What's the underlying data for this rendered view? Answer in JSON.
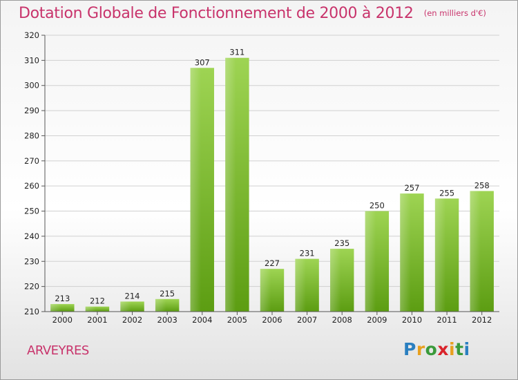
{
  "title": "Dotation Globale de Fonctionnement de 2000 à 2012",
  "unit_label": "(en milliers d'€)",
  "commune": "ARVEYRES",
  "logo": {
    "text": "Proxiti",
    "colors": [
      "#2a7fc0",
      "#e8a01f",
      "#3a9a3a",
      "#d9242c",
      "#e8a01f",
      "#3a9a3a",
      "#2a7fc0"
    ]
  },
  "colors": {
    "title": "#c8336b",
    "bar_light": "#9ed453",
    "bar_dark": "#5c9d12",
    "grid": "#d0d0d0"
  },
  "chart_data": {
    "type": "bar",
    "title": "Dotation Globale de Fonctionnement de 2000 à 2012",
    "subtitle": "(en milliers d'€)",
    "xlabel": "",
    "ylabel": "",
    "categories": [
      "2000",
      "2001",
      "2002",
      "2003",
      "2004",
      "2005",
      "2006",
      "2007",
      "2008",
      "2009",
      "2010",
      "2011",
      "2012"
    ],
    "values": [
      213,
      212,
      214,
      215,
      307,
      311,
      227,
      231,
      235,
      250,
      257,
      255,
      258
    ],
    "ylim": [
      210,
      320
    ],
    "yticks": [
      210,
      220,
      230,
      240,
      250,
      260,
      270,
      280,
      290,
      300,
      310,
      320
    ],
    "grid": true,
    "data_labels": true
  }
}
